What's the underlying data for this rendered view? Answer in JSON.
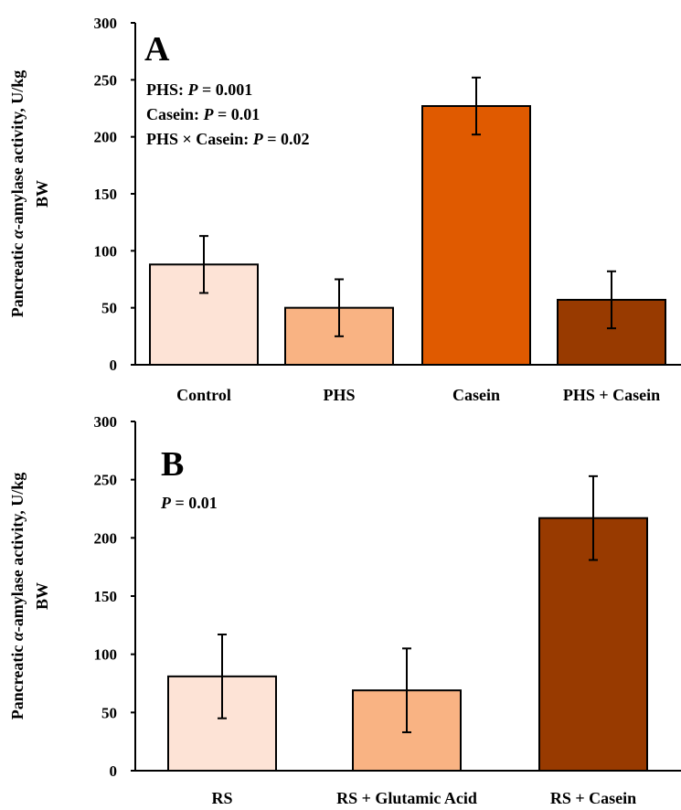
{
  "chart_data": [
    {
      "type": "bar",
      "panel_label": "A",
      "ylabel": "Pancreatic α-amylase activity, U/kg BW",
      "ylabel_lines": [
        "Pancreatic α-amylase activity, U/kg",
        "BW"
      ],
      "ylim": [
        0,
        300
      ],
      "yticks": [
        0,
        50,
        100,
        150,
        200,
        250,
        300
      ],
      "categories": [
        "Control",
        "PHS",
        "Casein",
        "PHS + Casein"
      ],
      "values": [
        88,
        50,
        227,
        57
      ],
      "errors": [
        25,
        25,
        25,
        25
      ],
      "colors": [
        "#FDE3D6",
        "#F9B383",
        "#E05A00",
        "#983A00"
      ],
      "stats": [
        {
          "label": "PHS: ",
          "p": "P",
          "rest": " = 0.001"
        },
        {
          "label": "Casein: ",
          "p": "P",
          "rest": " = 0.01"
        },
        {
          "label": "PHS × Casein: ",
          "p": "P",
          "rest": " = 0.02"
        }
      ],
      "grid": false
    },
    {
      "type": "bar",
      "panel_label": "B",
      "ylabel": "Pancreatic α-amylase activity, U/kg BW",
      "ylabel_lines": [
        "Pancreatic α-amylase activity, U/kg",
        "BW"
      ],
      "ylim": [
        0,
        300
      ],
      "yticks": [
        0,
        50,
        100,
        150,
        200,
        250,
        300
      ],
      "categories": [
        "RS",
        "RS + Glutamic Acid",
        "RS + Casein"
      ],
      "values": [
        81,
        69,
        217
      ],
      "errors": [
        36,
        36,
        36
      ],
      "colors": [
        "#FDE3D6",
        "#F9B383",
        "#983A00"
      ],
      "stats": [
        {
          "label": "",
          "p": "P",
          "rest": " = 0.01"
        }
      ],
      "grid": false
    }
  ]
}
